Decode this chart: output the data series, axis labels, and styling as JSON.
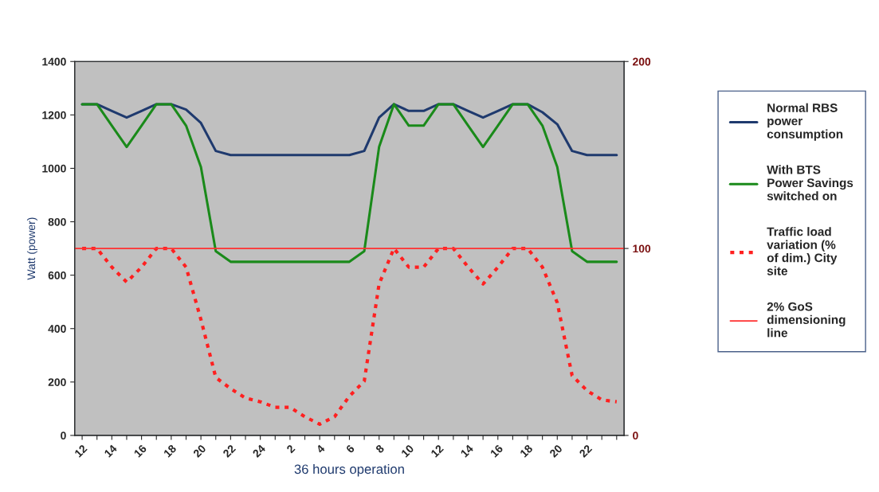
{
  "chart_data": {
    "type": "line",
    "xlabel": "36 hours operation",
    "ylabel": "Watt (power)",
    "categories": [
      "12",
      null,
      "14",
      null,
      "16",
      null,
      "18",
      null,
      "20",
      null,
      "22",
      null,
      "24",
      null,
      "2",
      null,
      "4",
      null,
      "6",
      null,
      "8",
      null,
      "10",
      null,
      "12",
      null,
      "14",
      null,
      "16",
      null,
      "18",
      null,
      "20",
      null,
      "22",
      null,
      null
    ],
    "ylim": [
      0,
      1400
    ],
    "yticks": [
      0,
      200,
      400,
      600,
      800,
      1000,
      1200,
      1400
    ],
    "y2lim": [
      0,
      200
    ],
    "y2ticks": [
      0,
      100,
      200
    ],
    "series": [
      {
        "name": "Normal RBS power consumption",
        "color": "#1f3a6e",
        "line_style": "solid",
        "values": [
          1240,
          1240,
          1215,
          1190,
          1215,
          1240,
          1240,
          1220,
          1170,
          1065,
          1050,
          1050,
          1050,
          1050,
          1050,
          1050,
          1050,
          1050,
          1050,
          1065,
          1190,
          1240,
          1215,
          1215,
          1240,
          1240,
          1215,
          1190,
          1215,
          1240,
          1240,
          1210,
          1165,
          1065,
          1050,
          1050,
          1050
        ]
      },
      {
        "name": "With BTS Power Savings switched on",
        "color": "#1a8a1a",
        "line_style": "solid",
        "values": [
          1240,
          1240,
          1160,
          1080,
          1160,
          1240,
          1240,
          1160,
          1005,
          690,
          650,
          650,
          650,
          650,
          650,
          650,
          650,
          650,
          650,
          690,
          1080,
          1240,
          1160,
          1160,
          1240,
          1240,
          1160,
          1080,
          1160,
          1240,
          1240,
          1160,
          1005,
          690,
          650,
          650,
          650
        ]
      },
      {
        "name": "Traffic load variation (% of dim.) City site",
        "color": "#ff2020",
        "line_style": "dotted",
        "axis": "y2",
        "values": [
          100,
          100,
          90,
          82,
          90,
          100,
          100,
          90,
          62,
          31,
          25,
          20,
          18,
          15,
          15,
          10,
          6,
          10,
          21,
          29,
          81,
          100,
          90,
          90,
          100,
          100,
          90,
          81,
          90,
          100,
          100,
          90,
          71,
          32,
          24,
          19,
          18
        ]
      }
    ],
    "ref_lines": [
      {
        "axis": "y2",
        "value": 100,
        "label": " 2% GoS dimensioning line",
        "color": "#ff3030",
        "line_style": "solid"
      }
    ],
    "legend": "right",
    "grid": false,
    "marker": "none"
  }
}
